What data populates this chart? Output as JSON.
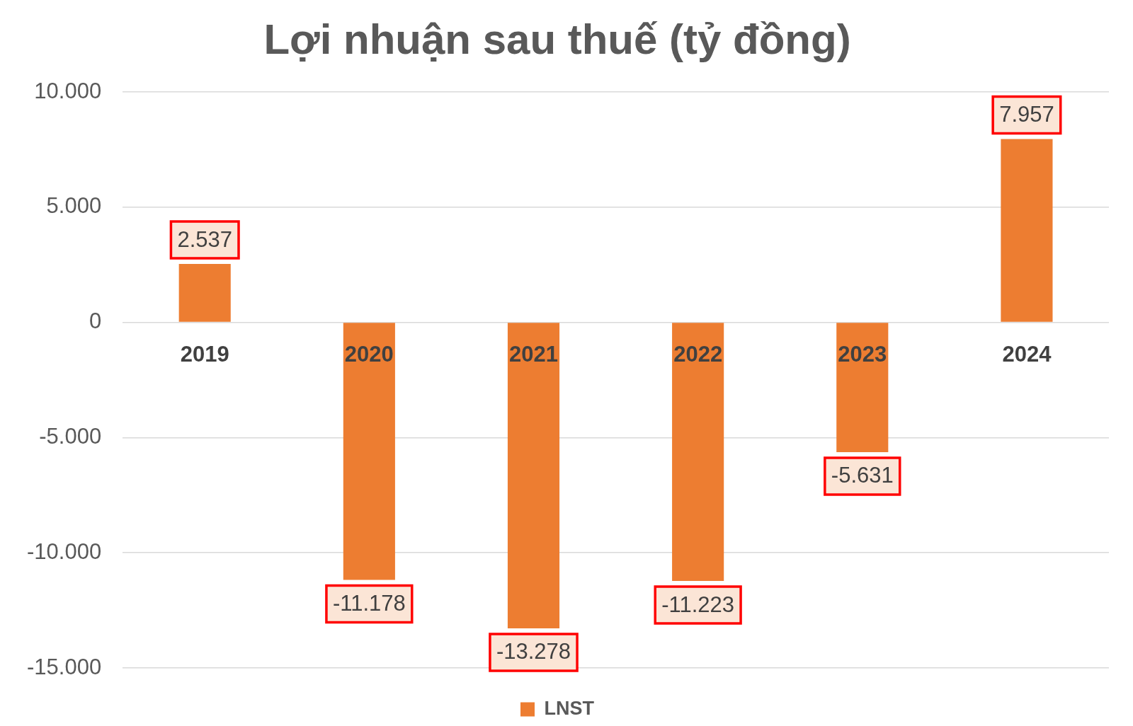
{
  "chart_data": {
    "type": "bar",
    "title": "Lợi nhuận sau thuế (tỷ đồng)",
    "categories": [
      "2019",
      "2020",
      "2021",
      "2022",
      "2023",
      "2024"
    ],
    "series": [
      {
        "name": "LNST",
        "color": "#ed7d31",
        "values": [
          2537,
          -11178,
          -13278,
          -11223,
          -5631,
          7957
        ],
        "value_labels": [
          "2.537",
          "-11.178",
          "-13.278",
          "-11.223",
          "-5.631",
          "7.957"
        ]
      }
    ],
    "ylim": [
      -15000,
      10000
    ],
    "yticks": [
      {
        "value": -15000,
        "label": "-15.000"
      },
      {
        "value": -10000,
        "label": "-10.000"
      },
      {
        "value": -5000,
        "label": "-5.000"
      },
      0,
      {
        "value": 5000,
        "label": "5.000"
      },
      {
        "value": 10000,
        "label": "10.000"
      }
    ],
    "grid": "y",
    "legend": "bottom"
  }
}
